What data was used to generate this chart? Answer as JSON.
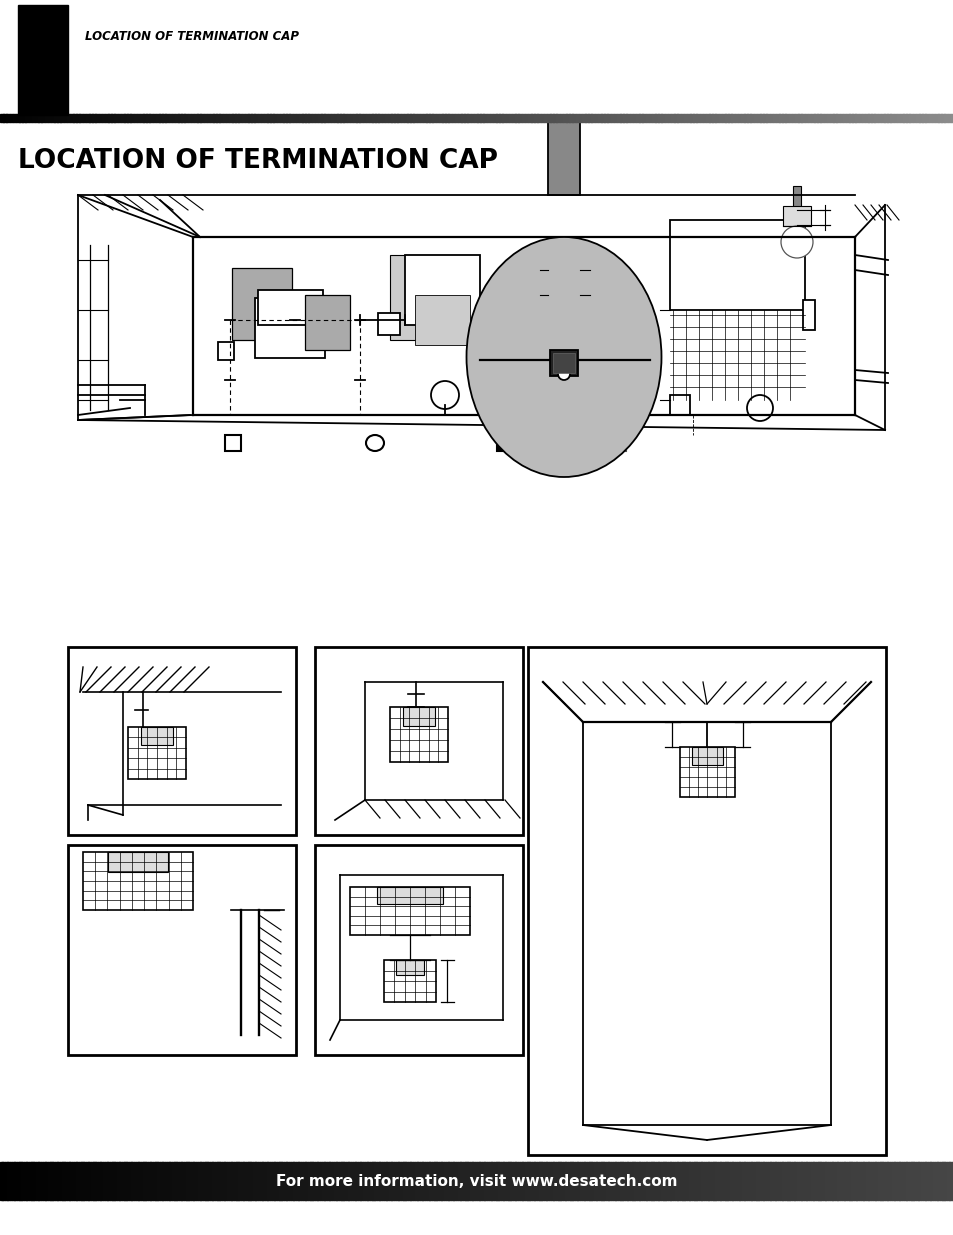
{
  "page_bg": "#ffffff",
  "header_text": "LOCATION OF TERMINATION CAP",
  "main_title": "LOCATION OF TERMINATION CAP",
  "footer_text": "For more information, visit www.desatech.com",
  "footer_text_color": "#ffffff",
  "lc": "#000000",
  "gray_light": "#bbbbbb",
  "gray_mid": "#999999",
  "gray_dark": "#777777"
}
